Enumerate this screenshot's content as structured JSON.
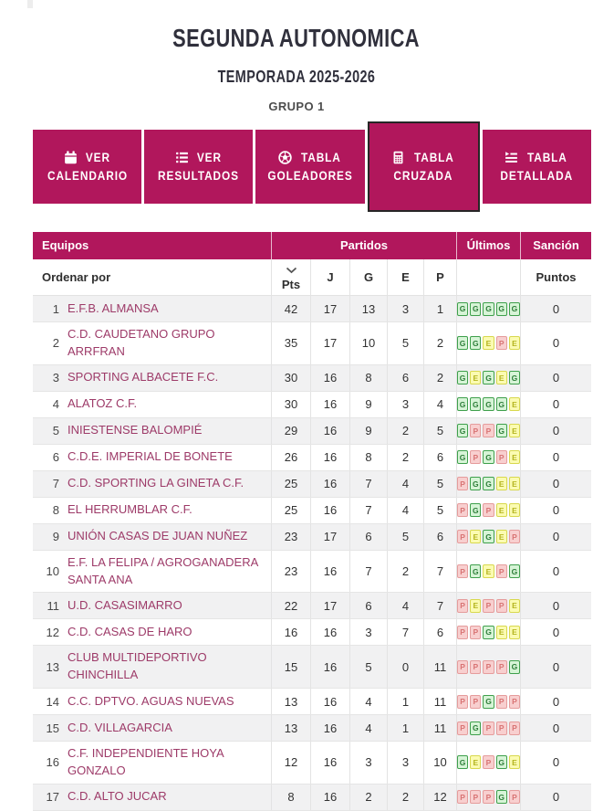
{
  "page": {
    "title": "SEGUNDA AUTONOMICA",
    "subtitle": "TEMPORADA 2025-2026",
    "group": "GRUPO 1"
  },
  "colors": {
    "accent": "#b1175c",
    "active_tab_border": "#262626",
    "team_link": "#9d3a68",
    "win_badge": "#3fa04c",
    "draw_badge": "#d8d84e",
    "loss_badge": "#e59c9c"
  },
  "tabs": [
    {
      "line1": "VER",
      "line2": "CALENDARIO",
      "icon": "calendar-icon",
      "active": false
    },
    {
      "line1": "VER",
      "line2": "RESULTADOS",
      "icon": "list-icon",
      "active": false
    },
    {
      "line1": "TABLA",
      "line2": "GOLEADORES",
      "icon": "soccer-ball-icon",
      "active": false
    },
    {
      "line1": "TABLA",
      "line2": "CRUZADA",
      "icon": "calculator-icon",
      "active": true
    },
    {
      "line1": "TABLA",
      "line2": "DETALLADA",
      "icon": "detailed-list-icon",
      "active": false
    }
  ],
  "table": {
    "header": {
      "equipos": "Equipos",
      "partidos": "Partidos",
      "ultimos": "Últimos",
      "sancion": "Sanción"
    },
    "subheader": {
      "ordenar": "Ordenar por",
      "pts": "Pts",
      "j": "J",
      "g": "G",
      "e": "E",
      "p": "P",
      "puntos": "Puntos",
      "sort_icon": "chevron-down-icon"
    },
    "rows": [
      {
        "pos": "1",
        "team": "E.F.B. ALMANSA",
        "pts": "42",
        "j": "17",
        "g": "13",
        "e": "3",
        "p": "1",
        "last5": [
          "G",
          "G",
          "G",
          "G",
          "G"
        ],
        "sancion": "0"
      },
      {
        "pos": "2",
        "team": "C.D. CAUDETANO GRUPO ARRFRAN",
        "pts": "35",
        "j": "17",
        "g": "10",
        "e": "5",
        "p": "2",
        "last5": [
          "G",
          "G",
          "E",
          "P",
          "E"
        ],
        "sancion": "0"
      },
      {
        "pos": "3",
        "team": "SPORTING ALBACETE F.C.",
        "pts": "30",
        "j": "16",
        "g": "8",
        "e": "6",
        "p": "2",
        "last5": [
          "G",
          "E",
          "G",
          "E",
          "G"
        ],
        "sancion": "0"
      },
      {
        "pos": "4",
        "team": "ALATOZ C.F.",
        "pts": "30",
        "j": "16",
        "g": "9",
        "e": "3",
        "p": "4",
        "last5": [
          "G",
          "G",
          "G",
          "G",
          "E"
        ],
        "sancion": "0"
      },
      {
        "pos": "5",
        "team": "INIESTENSE BALOMPIÉ",
        "pts": "29",
        "j": "16",
        "g": "9",
        "e": "2",
        "p": "5",
        "last5": [
          "G",
          "P",
          "P",
          "G",
          "E"
        ],
        "sancion": "0"
      },
      {
        "pos": "6",
        "team": "C.D.E. IMPERIAL DE BONETE",
        "pts": "26",
        "j": "16",
        "g": "8",
        "e": "2",
        "p": "6",
        "last5": [
          "G",
          "P",
          "G",
          "P",
          "E"
        ],
        "sancion": "0"
      },
      {
        "pos": "7",
        "team": "C.D. SPORTING LA GINETA C.F.",
        "pts": "25",
        "j": "16",
        "g": "7",
        "e": "4",
        "p": "5",
        "last5": [
          "P",
          "G",
          "G",
          "E",
          "E"
        ],
        "sancion": "0"
      },
      {
        "pos": "8",
        "team": "EL HERRUMBLAR C.F.",
        "pts": "25",
        "j": "16",
        "g": "7",
        "e": "4",
        "p": "5",
        "last5": [
          "P",
          "G",
          "P",
          "E",
          "E"
        ],
        "sancion": "0"
      },
      {
        "pos": "9",
        "team": "UNIÓN CASAS DE JUAN NUÑEZ",
        "pts": "23",
        "j": "17",
        "g": "6",
        "e": "5",
        "p": "6",
        "last5": [
          "P",
          "E",
          "G",
          "E",
          "P"
        ],
        "sancion": "0"
      },
      {
        "pos": "10",
        "team": "E.F. LA FELIPA / AGROGANADERA SANTA ANA",
        "pts": "23",
        "j": "16",
        "g": "7",
        "e": "2",
        "p": "7",
        "last5": [
          "P",
          "G",
          "E",
          "P",
          "G"
        ],
        "sancion": "0"
      },
      {
        "pos": "11",
        "team": "U.D. CASASIMARRO",
        "pts": "22",
        "j": "17",
        "g": "6",
        "e": "4",
        "p": "7",
        "last5": [
          "P",
          "E",
          "P",
          "P",
          "E"
        ],
        "sancion": "0"
      },
      {
        "pos": "12",
        "team": "C.D. CASAS DE HARO",
        "pts": "16",
        "j": "16",
        "g": "3",
        "e": "7",
        "p": "6",
        "last5": [
          "P",
          "P",
          "G",
          "E",
          "E"
        ],
        "sancion": "0"
      },
      {
        "pos": "13",
        "team": "CLUB MULTIDEPORTIVO CHINCHILLA",
        "pts": "15",
        "j": "16",
        "g": "5",
        "e": "0",
        "p": "11",
        "last5": [
          "P",
          "P",
          "P",
          "P",
          "G"
        ],
        "sancion": "0"
      },
      {
        "pos": "14",
        "team": "C.C. DPTVO. AGUAS NUEVAS",
        "pts": "13",
        "j": "16",
        "g": "4",
        "e": "1",
        "p": "11",
        "last5": [
          "P",
          "P",
          "G",
          "P",
          "P"
        ],
        "sancion": "0"
      },
      {
        "pos": "15",
        "team": "C.D. VILLAGARCIA",
        "pts": "13",
        "j": "16",
        "g": "4",
        "e": "1",
        "p": "11",
        "last5": [
          "P",
          "G",
          "P",
          "P",
          "P"
        ],
        "sancion": "0"
      },
      {
        "pos": "16",
        "team": "C.F. INDEPENDIENTE HOYA GONZALO",
        "pts": "12",
        "j": "16",
        "g": "3",
        "e": "3",
        "p": "10",
        "last5": [
          "G",
          "E",
          "P",
          "G",
          "E"
        ],
        "sancion": "0"
      },
      {
        "pos": "17",
        "team": "C.D. ALTO JUCAR",
        "pts": "8",
        "j": "16",
        "g": "2",
        "e": "2",
        "p": "12",
        "last5": [
          "P",
          "P",
          "P",
          "G",
          "P"
        ],
        "sancion": "0"
      }
    ]
  }
}
